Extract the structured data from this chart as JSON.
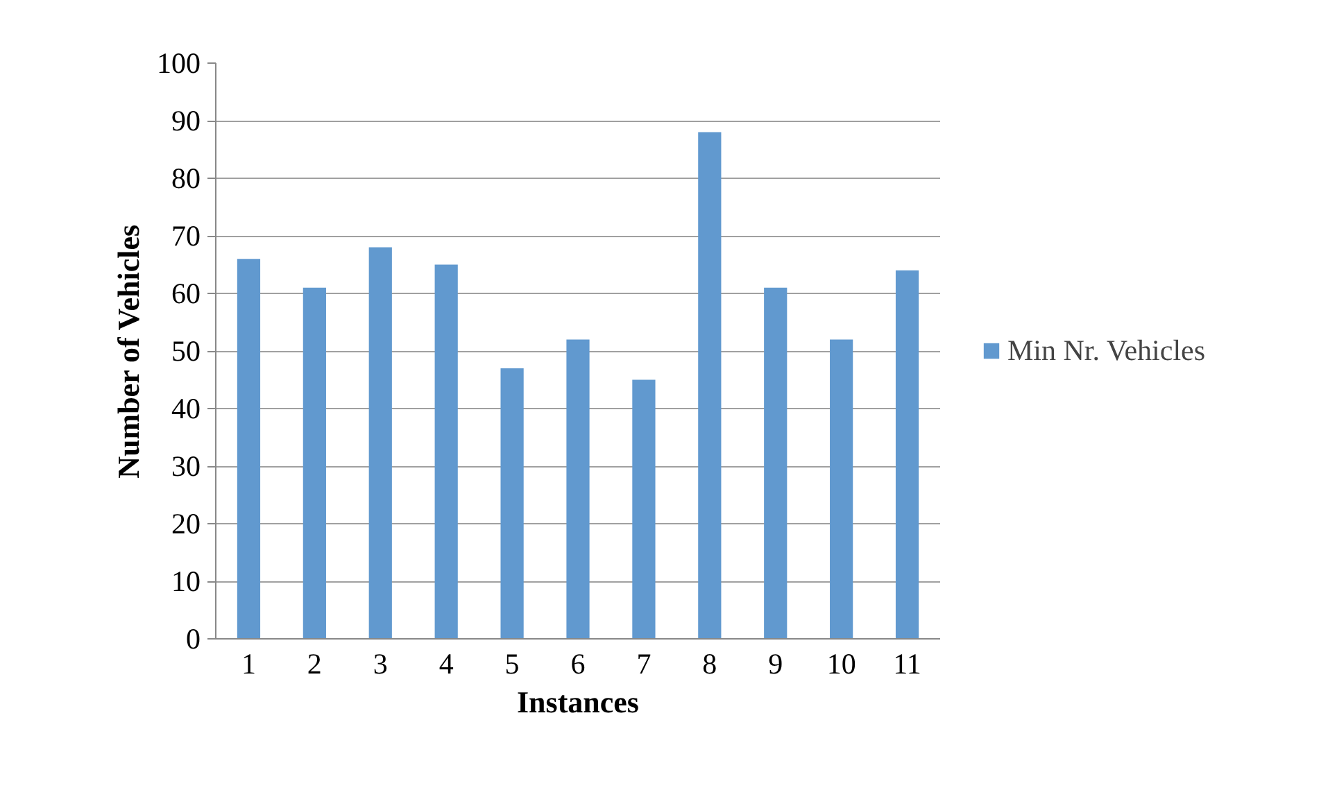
{
  "chart_data": {
    "type": "bar",
    "xlabel": "Instances",
    "ylabel": "Number of Vehicles",
    "categories": [
      "1",
      "2",
      "3",
      "4",
      "5",
      "6",
      "7",
      "8",
      "9",
      "10",
      "11"
    ],
    "series": [
      {
        "name": "Min Nr. Vehicles",
        "color": "#6199cf",
        "values": [
          66,
          61,
          68,
          65,
          47,
          52,
          45,
          88,
          61,
          52,
          64
        ]
      }
    ],
    "ylim": [
      0,
      100
    ],
    "yticks": [
      0,
      10,
      20,
      30,
      40,
      50,
      60,
      70,
      80,
      90,
      100
    ],
    "grid": "y",
    "legend": "right"
  }
}
